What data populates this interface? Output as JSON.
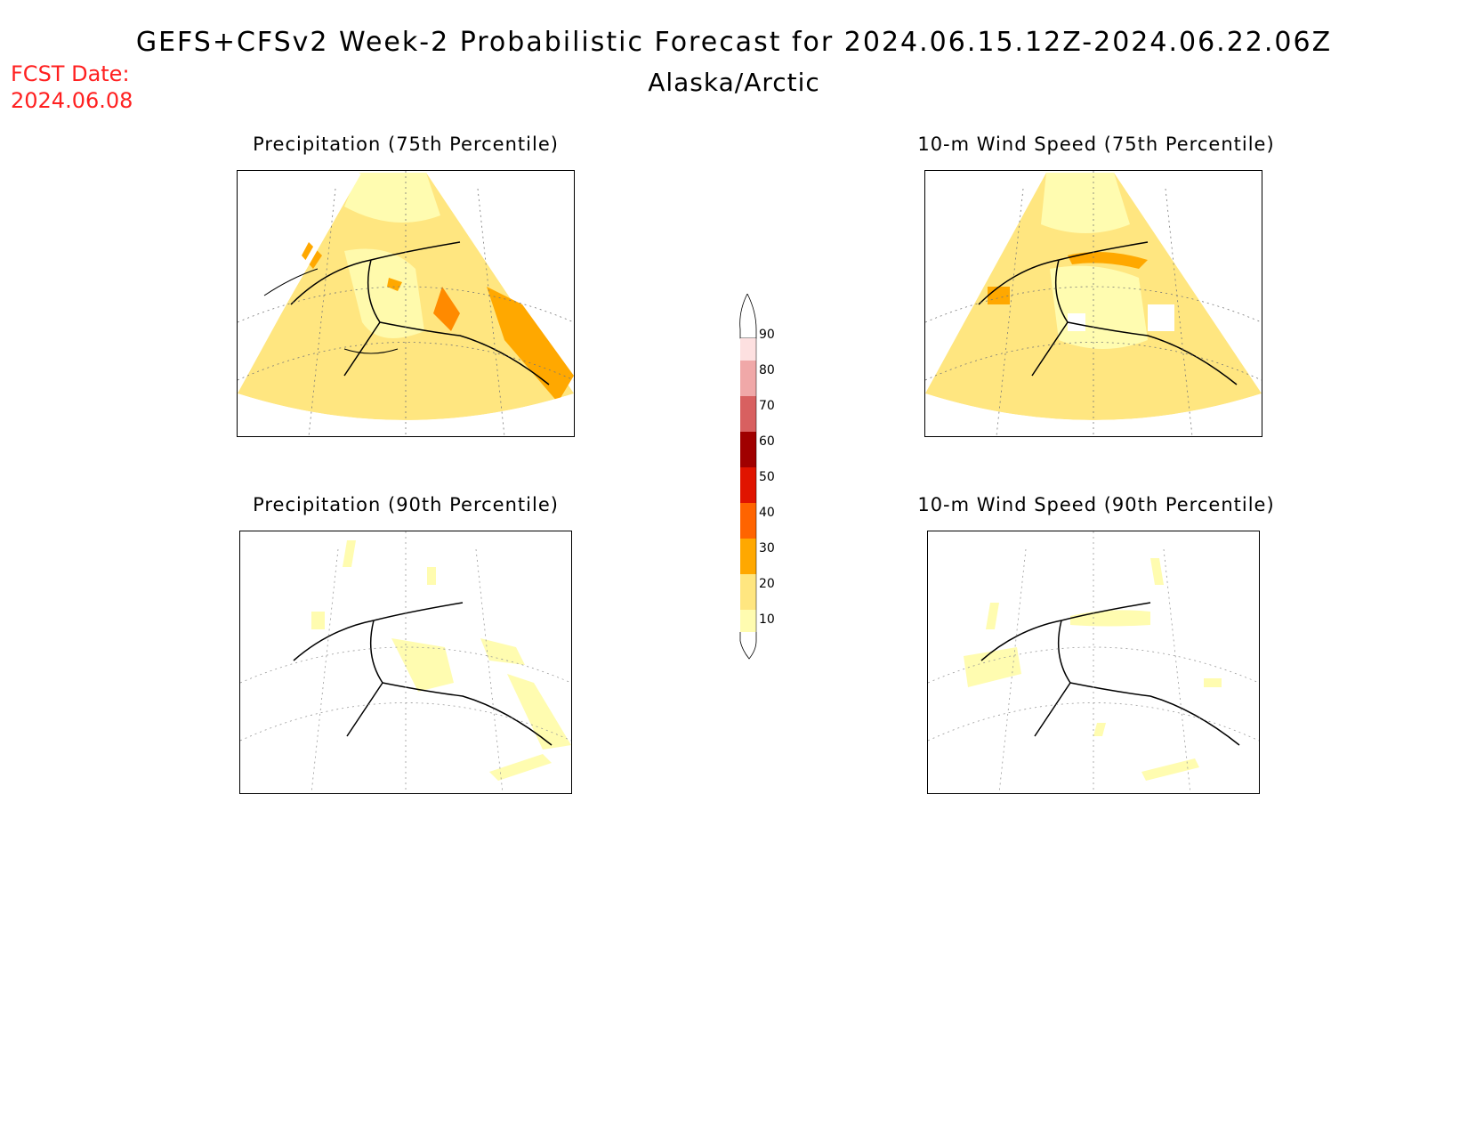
{
  "header": {
    "title": "GEFS+CFSv2 Week-2 Probabilistic Forecast for 2024.06.15.12Z-2024.06.22.06Z",
    "region": "Alaska/Arctic",
    "fcst_label": "FCST Date:",
    "fcst_date": "2024.06.08"
  },
  "panels": [
    {
      "id": "precip75",
      "title": "Precipitation (75th Percentile)"
    },
    {
      "id": "wind75",
      "title": "10-m Wind Speed (75th Percentile)"
    },
    {
      "id": "precip90",
      "title": "Precipitation (90th Percentile)"
    },
    {
      "id": "wind90",
      "title": "10-m Wind Speed (90th Percentile)"
    }
  ],
  "colorbar": {
    "levels": [
      "10",
      "20",
      "30",
      "40",
      "50",
      "60",
      "70",
      "80",
      "90"
    ],
    "colors": [
      "#fffcb0",
      "#ffe680",
      "#ffa800",
      "#ff6400",
      "#e01400",
      "#a00000",
      "#d86060",
      "#f0a8a8",
      "#fde0e0"
    ]
  }
}
